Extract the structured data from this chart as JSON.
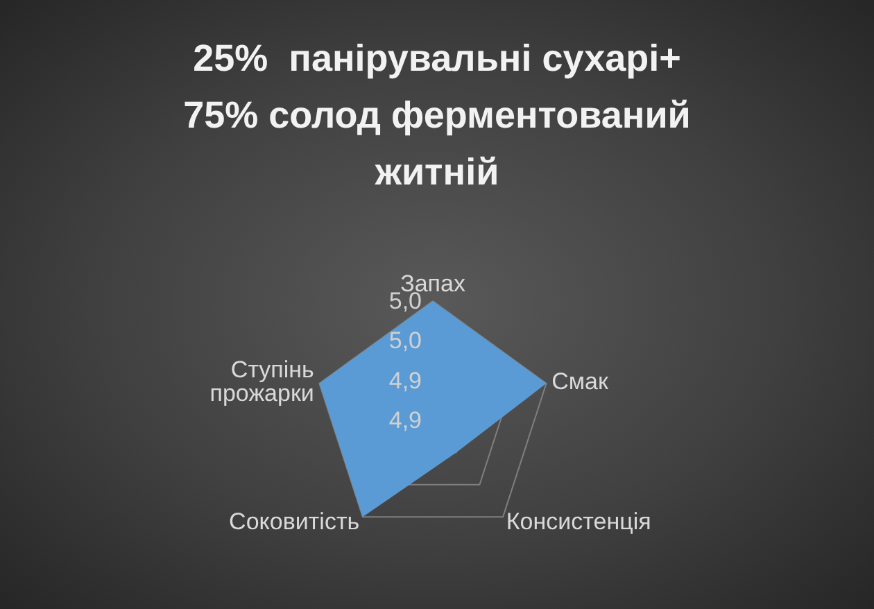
{
  "chart_data": {
    "type": "radar",
    "title": "25%  панірувальні сухарі+ 75% солод ферментований житній",
    "categories": [
      "Запах",
      "Смак",
      "Консистенція",
      "Соковитість",
      "Ступінь прожарки"
    ],
    "series": [
      {
        "color": "#5b9bd5",
        "values": [
          5.0,
          5.0,
          4.9,
          5.0,
          5.0
        ]
      }
    ],
    "ylim": [
      4.85,
      5.0
    ],
    "yticks": [
      {
        "value": 4.85,
        "label": "4,9"
      },
      {
        "value": 4.9,
        "label": "4,9"
      },
      {
        "value": 4.95,
        "label": "5,0"
      },
      {
        "value": 5.0,
        "label": "5,0"
      }
    ],
    "grid": true
  }
}
